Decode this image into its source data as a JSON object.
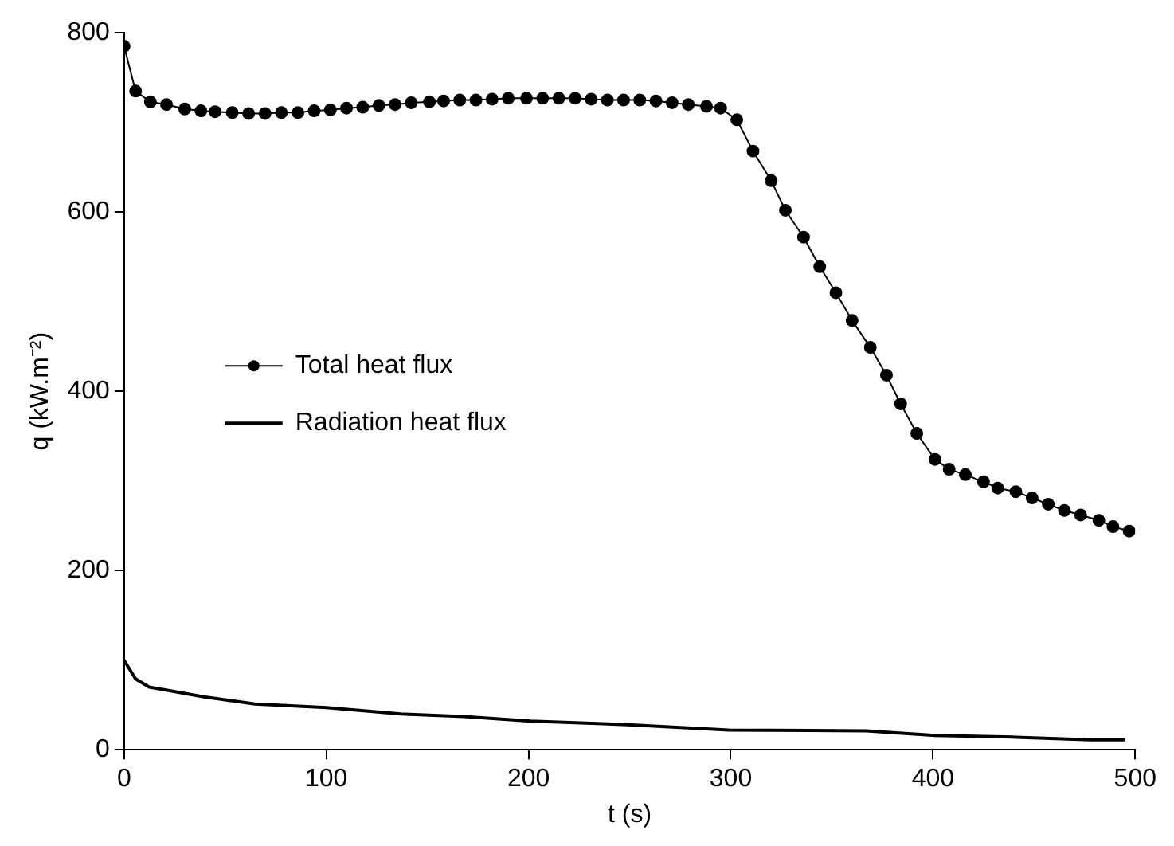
{
  "chart_data": {
    "type": "line",
    "xlabel": "t (s)",
    "ylabel": "q (kW.m⁻²)",
    "xlim": [
      0,
      500
    ],
    "xticks": [
      0,
      100,
      200,
      300,
      400,
      500
    ],
    "ylim": [
      0,
      800
    ],
    "yticks": [
      0,
      200,
      400,
      600,
      800
    ],
    "grid": false,
    "legend": "left",
    "line_style": "solid",
    "series": [
      {
        "name": "Total heat flux",
        "color": "#000000",
        "marker": "circle",
        "x": [
          0,
          5.7,
          13,
          21,
          30,
          38,
          45,
          53.5,
          61.6,
          69.7,
          77.8,
          86,
          94,
          102,
          110,
          118,
          126,
          134,
          142,
          151,
          158,
          166,
          174,
          182,
          190,
          199,
          207,
          215,
          223,
          231,
          239,
          247,
          255,
          263,
          271,
          279,
          288,
          295,
          303,
          311,
          320,
          327,
          336,
          344,
          352,
          360,
          369,
          377,
          384,
          392,
          401,
          408,
          416,
          425,
          432,
          441,
          449,
          457,
          465,
          473,
          482,
          489,
          497
        ],
        "values": [
          785,
          735,
          723,
          720,
          715,
          713,
          712,
          711,
          710,
          710,
          711,
          711,
          713,
          714,
          716,
          717,
          719,
          720,
          722,
          723,
          724,
          725,
          725,
          726,
          727,
          727,
          727,
          727,
          727,
          726,
          725,
          725,
          725,
          724,
          722,
          720,
          718,
          716,
          703,
          668,
          635,
          602,
          572,
          539,
          510,
          479,
          449,
          418,
          386,
          353,
          324,
          313,
          307,
          299,
          292,
          288,
          281,
          274,
          267,
          262,
          256,
          249,
          244
        ]
      },
      {
        "name": "Radiation heat flux",
        "color": "#000000",
        "marker": "none",
        "x": [
          0,
          5.7,
          12.4,
          22.5,
          39.4,
          64.8,
          100,
          137,
          168,
          201,
          249,
          299,
          367,
          401,
          441,
          478,
          495
        ],
        "values": [
          100,
          79,
          70,
          66,
          59,
          51,
          47,
          40,
          37,
          32,
          28,
          22,
          21,
          16,
          14,
          11,
          11
        ]
      }
    ]
  }
}
